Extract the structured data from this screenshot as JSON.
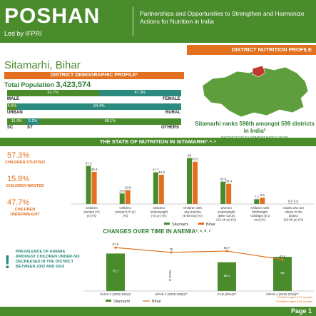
{
  "header": {
    "logo": "POSHAN",
    "led_by": "Led by IFPRI",
    "tagline": "Partnerships and Opportunities to Strengthen and Harmonize Actions for Nutrition in India"
  },
  "profile_banner": "DISTRICT NUTRITION PROFILE",
  "district": "Sitamarhi, Bihar",
  "demographic_title": "DISTRICT DEMOGRAPHIC PROFILE¹",
  "population_label": "Total Population",
  "population_value": "3,423,574",
  "gender": {
    "male_label": "MALE",
    "female_label": "FEMALE",
    "male_pct": "52.7%",
    "female_pct": "47.3%",
    "male": 52.7,
    "female": 47.3
  },
  "residence": {
    "urban_label": "URBAN",
    "rural_label": "RURAL",
    "urban_pct": "5.6%",
    "rural_pct": "94.4%",
    "urban": 5.6,
    "rural": 94.4
  },
  "caste": {
    "sc_label": "SC",
    "st_label": "ST",
    "others_label": "OTHERS",
    "sc_pct": "11.9%",
    "st_pct": "0.1%",
    "others_pct": "88.1%",
    "sc": 11.9,
    "st": 0.1,
    "others": 88.1
  },
  "rank_text": "Sitamarhi ranks 596th amongst 599 districts in India²",
  "dev_index": "DISTRICT DEVELOPMENT INDEX (2015)",
  "colors": {
    "green": "#4a8b2c",
    "orange": "#e2701f",
    "teal": "#2b8a7e"
  },
  "state_title": "THE STATE OF NUTRITION IN SITAMARHI³˒⁴˒⁵",
  "side_stats": [
    {
      "value": "57.3%",
      "label": "CHILDREN STUNTED"
    },
    {
      "value": "15.8%",
      "label": "CHILDREN WASTED"
    },
    {
      "value": "47.7%",
      "label": "CHILDREN UNDERWEIGHT"
    }
  ],
  "chart_data": [
    {
      "type": "bar",
      "categories": [
        "Children stunted (<5 yr) (%)",
        "Children wasted (<5 yr) (%)",
        "Children underweight (<5 yr) (%)",
        "Children with any anemia (6-59 mo) (%)",
        "Women underweight (BMI <18.5) (15-49 yr) (%)",
        "Children with birthweight <2500gm (0-2 mo) (%)",
        "Adults who are obese in the district (18-59 yr) (%)"
      ],
      "series": [
        {
          "name": "Sitamarhi",
          "values": [
            57.3,
            15.8,
            47.7,
            69.0,
            33.6,
            7.2,
            0.6
          ]
        },
        {
          "name": "Bihar",
          "values": [
            48.3,
            20.8,
            43.9,
            63.5,
            30.4,
            9.5,
            0.6
          ]
        }
      ],
      "ylim": [
        0,
        75
      ]
    },
    {
      "type": "bar",
      "title": "CHANGES OVER TIME IN ANEMIA³˒⁵˒⁶˒⁷",
      "categories": [
        "DLHS 2 (2002-2004)*",
        "NFHS 3 (2005-2006)**",
        "CAB (2014)**",
        "NFHS 4 (2015-2016)**"
      ],
      "series": [
        {
          "name": "Sitamarhi",
          "values": [
            75.7,
            null,
            58.1,
            69.0
          ]
        },
        {
          "name": "Bihar",
          "values": [
            87.6,
            78.0,
            80.7,
            63.5
          ]
        }
      ],
      "na_label": "N DATA",
      "ylim": [
        0,
        95
      ]
    }
  ],
  "anemia_title": "CHANGES OVER TIME IN ANEMIA³˒⁵˒⁶˒⁷",
  "prevalence_text": "PREVALENCE OF ANEMIA AMONGST CHILDREN UNDER-SIX DECREASED IN THE DISTRICT BETWEEN 2002 AND 2016",
  "notes": [
    "*Children aged 6-71 months",
    "**Children aged 6-59 months"
  ],
  "legend": {
    "sitamarhi": "Sitamarhi",
    "bihar": "Bihar"
  },
  "page": "Page 1"
}
